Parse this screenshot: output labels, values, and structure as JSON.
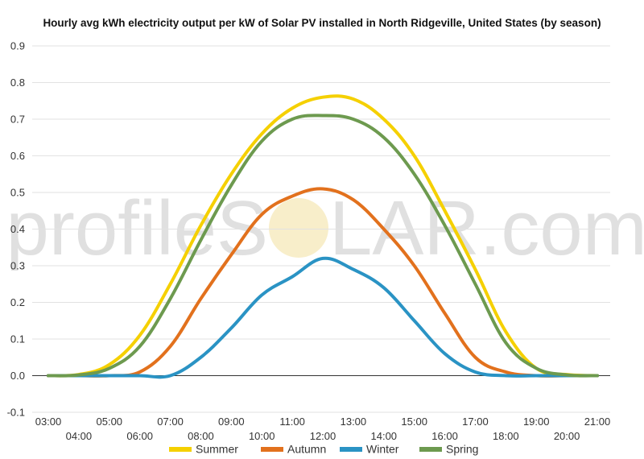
{
  "chart_data": {
    "type": "line",
    "title": "Hourly avg kWh electricity output per kW of Solar PV installed in North Ridgeville, United States (by season)",
    "xlabel": "",
    "ylabel": "",
    "ylim": [
      -0.1,
      0.9
    ],
    "yticks": [
      -0.1,
      0.0,
      0.1,
      0.2,
      0.3,
      0.4,
      0.5,
      0.6,
      0.7,
      0.8,
      0.9
    ],
    "ytick_labels": [
      "-0.1",
      "0.0",
      "0.1",
      "0.2",
      "0.3",
      "0.4",
      "0.5",
      "0.6",
      "0.7",
      "0.8",
      "0.9"
    ],
    "xlim": [
      3,
      21
    ],
    "x": [
      3,
      4,
      5,
      6,
      7,
      8,
      9,
      10,
      11,
      12,
      13,
      14,
      15,
      16,
      17,
      18,
      19,
      20,
      21
    ],
    "xtick_labels": [
      "03:00",
      "04:00",
      "05:00",
      "06:00",
      "07:00",
      "08:00",
      "09:00",
      "10:00",
      "11:00",
      "12:00",
      "13:00",
      "14:00",
      "15:00",
      "16:00",
      "17:00",
      "18:00",
      "19:00",
      "20:00",
      "21:00"
    ],
    "grid": true,
    "legend_position": "bottom",
    "series": [
      {
        "name": "Summer",
        "color": "#f5d000",
        "values": [
          0.0,
          0.003,
          0.03,
          0.11,
          0.25,
          0.41,
          0.55,
          0.66,
          0.73,
          0.76,
          0.755,
          0.7,
          0.6,
          0.45,
          0.29,
          0.12,
          0.02,
          0.003,
          0.0
        ]
      },
      {
        "name": "Autumn",
        "color": "#e2711d",
        "values": [
          0.0,
          0.0,
          0.0,
          0.01,
          0.08,
          0.21,
          0.33,
          0.44,
          0.49,
          0.51,
          0.48,
          0.4,
          0.3,
          0.17,
          0.05,
          0.01,
          0.0,
          0.0,
          0.0
        ]
      },
      {
        "name": "Winter",
        "color": "#2a93c4",
        "values": [
          0.0,
          0.0,
          0.0,
          0.0,
          0.0,
          0.05,
          0.13,
          0.22,
          0.27,
          0.32,
          0.29,
          0.24,
          0.15,
          0.06,
          0.01,
          0.0,
          0.0,
          0.0,
          0.0
        ]
      },
      {
        "name": "Spring",
        "color": "#6d9a4f",
        "values": [
          0.0,
          0.002,
          0.02,
          0.08,
          0.21,
          0.37,
          0.52,
          0.64,
          0.7,
          0.71,
          0.7,
          0.65,
          0.55,
          0.41,
          0.25,
          0.09,
          0.02,
          0.002,
          0.0
        ]
      }
    ]
  },
  "watermark": {
    "text_left": "profileS",
    "text_right": "LAR.com",
    "sun_color": "#f3e3a6"
  }
}
